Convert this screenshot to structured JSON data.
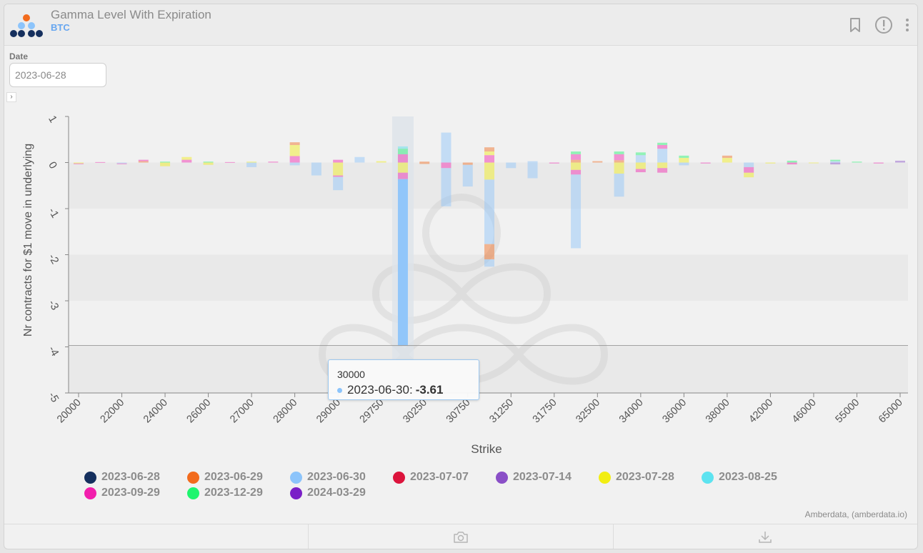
{
  "header": {
    "title": "Gamma Level With Expiration",
    "subtitle": "BTC"
  },
  "filters": {
    "date_label": "Date",
    "date_value": "2023-06-28"
  },
  "colors": {
    "2023-06-28": "#15305e",
    "2023-06-29": "#f26b1d",
    "2023-06-30": "#8cc4fb",
    "2023-07-07": "#dc143c",
    "2023-07-14": "#8a4fc7",
    "2023-07-28": "#f2ee12",
    "2023-08-25": "#5de3f0",
    "2023-09-29": "#f21fad",
    "2023-12-29": "#1ef56e",
    "2024-03-29": "#7a1fc7"
  },
  "legend": [
    {
      "label": "2023-06-28",
      "color": "#15305e"
    },
    {
      "label": "2023-06-29",
      "color": "#f26b1d"
    },
    {
      "label": "2023-06-30",
      "color": "#8cc4fb"
    },
    {
      "label": "2023-07-07",
      "color": "#dc143c"
    },
    {
      "label": "2023-07-14",
      "color": "#8a4fc7"
    },
    {
      "label": "2023-07-28",
      "color": "#f2ee12"
    },
    {
      "label": "2023-08-25",
      "color": "#5de3f0"
    },
    {
      "label": "2023-09-29",
      "color": "#f21fad"
    },
    {
      "label": "2023-12-29",
      "color": "#1ef56e"
    },
    {
      "label": "2024-03-29",
      "color": "#7a1fc7"
    }
  ],
  "chart_data": {
    "type": "bar",
    "stacked": true,
    "xlabel": "Strike",
    "ylabel": "Nr contracts for $1 move in underlying",
    "ylim": [
      -5,
      1
    ],
    "yticks": [
      "1",
      "0",
      "-1",
      "-2",
      "-3",
      "-4",
      "-5"
    ],
    "tick_labels": [
      "20000",
      "22000",
      "24000",
      "26000",
      "27000",
      "28000",
      "29000",
      "29750",
      "30250",
      "30750",
      "31250",
      "31750",
      "32500",
      "34000",
      "36000",
      "38000",
      "42000",
      "46000",
      "55000",
      "65000"
    ],
    "categories": [
      "20000",
      "21000",
      "22000",
      "23000",
      "24000",
      "25000",
      "26000",
      "26500",
      "27000",
      "27500",
      "28000",
      "28500",
      "29000",
      "29500",
      "29750",
      "30000",
      "30250",
      "30500",
      "30750",
      "31000",
      "31250",
      "31500",
      "31750",
      "32000",
      "32500",
      "33000",
      "34000",
      "35000",
      "36000",
      "37000",
      "38000",
      "40000",
      "42000",
      "44000",
      "46000",
      "50000",
      "55000",
      "60000",
      "65000"
    ],
    "highlight_category": "30000",
    "highlight_series": "2023-06-30",
    "highlight_value": -3.61,
    "bars": [
      {
        "pos": [],
        "neg": [
          [
            "2023-07-28",
            0.02
          ],
          [
            "2023-09-29",
            0.01
          ]
        ]
      },
      {
        "pos": [
          [
            "2023-09-29",
            0.01
          ]
        ],
        "neg": []
      },
      {
        "pos": [],
        "neg": [
          [
            "2023-06-30",
            0.02
          ],
          [
            "2023-09-29",
            0.01
          ]
        ]
      },
      {
        "pos": [
          [
            "2023-06-29",
            0.03
          ],
          [
            "2023-09-29",
            0.03
          ]
        ],
        "neg": []
      },
      {
        "pos": [
          [
            "2023-12-29",
            0.02
          ]
        ],
        "neg": [
          [
            "2023-07-28",
            0.08
          ]
        ]
      },
      {
        "pos": [
          [
            "2023-09-29",
            0.06
          ],
          [
            "2023-07-28",
            0.06
          ]
        ],
        "neg": []
      },
      {
        "pos": [
          [
            "2023-12-29",
            0.02
          ]
        ],
        "neg": [
          [
            "2023-07-28",
            0.05
          ]
        ]
      },
      {
        "pos": [
          [
            "2023-09-29",
            0.01
          ]
        ],
        "neg": []
      },
      {
        "pos": [
          [
            "2023-07-28",
            0.02
          ]
        ],
        "neg": [
          [
            "2023-06-30",
            0.1
          ]
        ]
      },
      {
        "pos": [
          [
            "2023-09-29",
            0.02
          ]
        ],
        "neg": []
      },
      {
        "pos": [
          [
            "2023-09-29",
            0.14
          ],
          [
            "2023-07-28",
            0.24
          ],
          [
            "2023-06-29",
            0.06
          ]
        ],
        "neg": [
          [
            "2023-06-30",
            0.06
          ]
        ]
      },
      {
        "pos": [],
        "neg": [
          [
            "2023-06-30",
            0.28
          ]
        ]
      },
      {
        "pos": [
          [
            "2023-09-29",
            0.06
          ]
        ],
        "neg": [
          [
            "2023-07-28",
            0.28
          ],
          [
            "2023-09-29",
            0.03
          ],
          [
            "2023-06-30",
            0.29
          ]
        ]
      },
      {
        "pos": [
          [
            "2023-06-30",
            0.12
          ]
        ],
        "neg": []
      },
      {
        "pos": [
          [
            "2023-07-28",
            0.03
          ]
        ],
        "neg": []
      },
      {
        "pos": [
          [
            "2023-09-29",
            0.18
          ],
          [
            "2023-12-29",
            0.12
          ],
          [
            "2023-08-25",
            0.05
          ]
        ],
        "neg": [
          [
            "2023-07-28",
            0.22
          ],
          [
            "2023-09-29",
            0.14
          ],
          [
            "2023-06-30",
            3.61
          ]
        ]
      },
      {
        "pos": [
          [
            "2023-06-29",
            0.02
          ]
        ],
        "neg": [
          [
            "2023-06-29",
            0.03
          ]
        ]
      },
      {
        "pos": [
          [
            "2023-06-30",
            0.65
          ]
        ],
        "neg": [
          [
            "2023-09-29",
            0.12
          ],
          [
            "2023-06-30",
            0.83
          ]
        ]
      },
      {
        "pos": [],
        "neg": [
          [
            "2023-06-29",
            0.05
          ],
          [
            "2023-06-30",
            0.47
          ]
        ]
      },
      {
        "pos": [
          [
            "2023-09-29",
            0.16
          ],
          [
            "2023-07-28",
            0.08
          ],
          [
            "2023-06-29",
            0.09
          ]
        ],
        "neg": [
          [
            "2023-07-28",
            0.37
          ],
          [
            "2023-06-30",
            1.4
          ],
          [
            "2023-06-29",
            0.33
          ],
          [
            "2023-06-30",
            0.16
          ]
        ]
      },
      {
        "pos": [],
        "neg": [
          [
            "2023-06-30",
            0.12
          ]
        ]
      },
      {
        "pos": [
          [
            "2023-06-30",
            0.03
          ]
        ],
        "neg": [
          [
            "2023-06-30",
            0.34
          ]
        ]
      },
      {
        "pos": [],
        "neg": [
          [
            "2023-09-29",
            0.02
          ]
        ]
      },
      {
        "pos": [
          [
            "2023-06-29",
            0.06
          ],
          [
            "2023-09-29",
            0.12
          ],
          [
            "2023-12-29",
            0.06
          ]
        ],
        "neg": [
          [
            "2023-07-28",
            0.16
          ],
          [
            "2023-09-29",
            0.1
          ],
          [
            "2023-06-30",
            1.6
          ]
        ]
      },
      {
        "pos": [
          [
            "2023-06-29",
            0.03
          ]
        ],
        "neg": []
      },
      {
        "pos": [
          [
            "2023-06-29",
            0.05
          ],
          [
            "2023-09-29",
            0.13
          ],
          [
            "2023-12-29",
            0.06
          ]
        ],
        "neg": [
          [
            "2023-07-28",
            0.24
          ],
          [
            "2023-06-30",
            0.5
          ]
        ]
      },
      {
        "pos": [
          [
            "2023-06-30",
            0.16
          ],
          [
            "2023-12-29",
            0.06
          ]
        ],
        "neg": [
          [
            "2023-07-28",
            0.14
          ],
          [
            "2023-09-29",
            0.07
          ]
        ]
      },
      {
        "pos": [
          [
            "2023-06-30",
            0.3
          ],
          [
            "2023-09-29",
            0.08
          ],
          [
            "2023-12-29",
            0.05
          ]
        ],
        "neg": [
          [
            "2023-07-28",
            0.12
          ],
          [
            "2023-09-29",
            0.1
          ]
        ]
      },
      {
        "pos": [
          [
            "2023-07-28",
            0.1
          ],
          [
            "2023-12-29",
            0.05
          ]
        ],
        "neg": [
          [
            "2023-06-30",
            0.06
          ]
        ]
      },
      {
        "pos": [],
        "neg": [
          [
            "2023-09-29",
            0.02
          ]
        ]
      },
      {
        "pos": [
          [
            "2023-07-28",
            0.1
          ],
          [
            "2023-06-29",
            0.05
          ]
        ],
        "neg": []
      },
      {
        "pos": [],
        "neg": [
          [
            "2023-06-30",
            0.1
          ],
          [
            "2023-09-29",
            0.12
          ],
          [
            "2023-07-28",
            0.1
          ]
        ]
      },
      {
        "pos": [],
        "neg": [
          [
            "2023-07-28",
            0.02
          ]
        ]
      },
      {
        "pos": [
          [
            "2023-12-29",
            0.04
          ]
        ],
        "neg": [
          [
            "2023-09-29",
            0.04
          ]
        ]
      },
      {
        "pos": [],
        "neg": [
          [
            "2023-07-28",
            0.01
          ]
        ]
      },
      {
        "pos": [
          [
            "2023-06-30",
            0.03
          ],
          [
            "2023-12-29",
            0.03
          ]
        ],
        "neg": [
          [
            "2023-07-14",
            0.04
          ]
        ]
      },
      {
        "pos": [
          [
            "2023-12-29",
            0.02
          ]
        ],
        "neg": []
      },
      {
        "pos": [],
        "neg": [
          [
            "2023-09-29",
            0.02
          ]
        ]
      },
      {
        "pos": [
          [
            "2023-07-14",
            0.04
          ]
        ],
        "neg": []
      }
    ]
  },
  "tooltip": {
    "strike": "30000",
    "series": "2023-06-30",
    "value": "-3.61"
  },
  "credit": "Amberdata, (amberdata.io)",
  "icons": {
    "bookmark": "bookmark-icon",
    "info": "info-icon",
    "more": "more-vertical-icon",
    "camera": "camera-icon",
    "download": "download-icon"
  }
}
